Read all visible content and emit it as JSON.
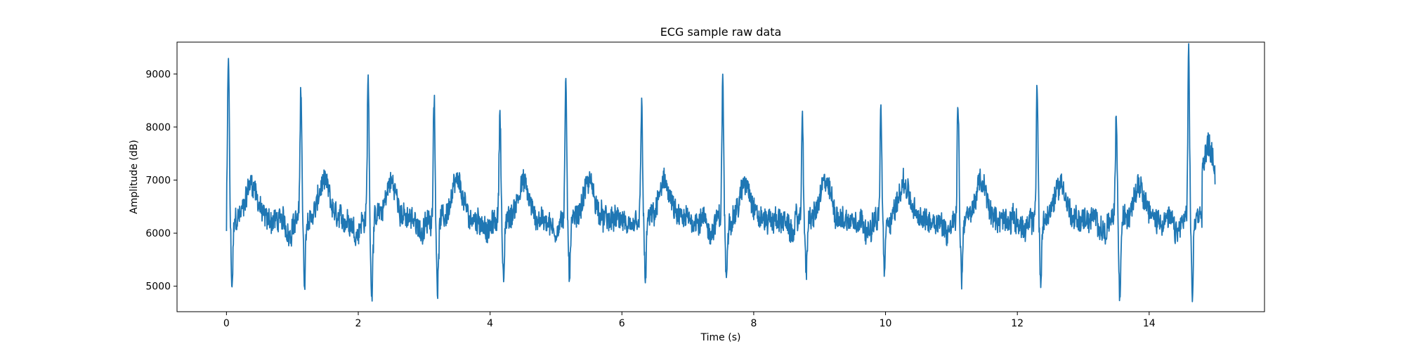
{
  "chart_data": {
    "type": "line",
    "title": "ECG sample raw data",
    "xlabel": "Time (s)",
    "ylabel": "Amplitude (dB)",
    "xlim": [
      -0.75,
      15.75
    ],
    "ylim": [
      4520,
      9600
    ],
    "xticks": [
      0,
      2,
      4,
      6,
      8,
      10,
      12,
      14
    ],
    "yticks": [
      5000,
      6000,
      7000,
      8000,
      9000
    ],
    "xtick_labels": [
      "0",
      "2",
      "4",
      "6",
      "8",
      "10",
      "12",
      "14"
    ],
    "ytick_labels": [
      "5000",
      "6000",
      "7000",
      "8000",
      "9000"
    ],
    "grid": false,
    "line_color": "#1f77b4",
    "series": [
      {
        "beats": [
          {
            "t": 0.03,
            "peak": 9350,
            "trough": 5000
          },
          {
            "t": 1.13,
            "peak": 8870,
            "trough": 5010
          },
          {
            "t": 2.15,
            "peak": 8990,
            "trough": 4860
          },
          {
            "t": 3.15,
            "peak": 8660,
            "trough": 4960
          },
          {
            "t": 4.15,
            "peak": 8410,
            "trough": 5070
          },
          {
            "t": 5.15,
            "peak": 8770,
            "trough": 5290
          },
          {
            "t": 6.3,
            "peak": 8410,
            "trough": 5130
          },
          {
            "t": 7.53,
            "peak": 8920,
            "trough": 5070
          },
          {
            "t": 8.74,
            "peak": 8240,
            "trough": 5180
          },
          {
            "t": 9.93,
            "peak": 8340,
            "trough": 5240
          },
          {
            "t": 11.1,
            "peak": 8510,
            "trough": 5140
          },
          {
            "t": 12.3,
            "peak": 8890,
            "trough": 5090
          },
          {
            "t": 13.5,
            "peak": 8250,
            "trough": 4740
          },
          {
            "t": 14.6,
            "peak": 9280,
            "trough": 4860
          }
        ],
        "baseline": 6250,
        "t_start": 0,
        "t_end": 15,
        "start_value": 6040,
        "end_value": 6920
      }
    ]
  }
}
